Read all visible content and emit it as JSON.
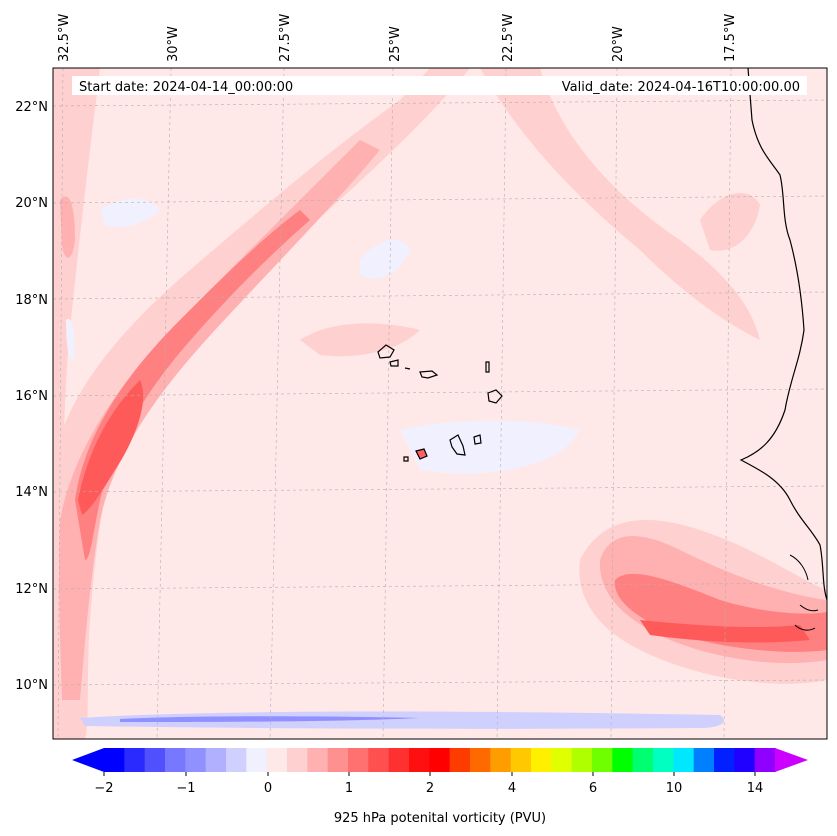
{
  "map": {
    "start_label": "Start date: 2024-04-14_00:00:00",
    "valid_label": "Valid_date: 2024-04-16T10:00:00.00",
    "lon_labels": [
      "32.5°W",
      "30°W",
      "27.5°W",
      "25°W",
      "22.5°W",
      "20°W",
      "17.5°W"
    ],
    "lat_labels": [
      "22°N",
      "20°N",
      "18°N",
      "16°N",
      "14°N",
      "12°N",
      "10°N"
    ],
    "background_color": "#ffe8e8"
  },
  "colorbar": {
    "label": "925 hPa potenital vorticity (PVU)",
    "tick_labels": [
      "−2",
      "−1",
      "0",
      "1",
      "2",
      "4",
      "6",
      "10",
      "14"
    ],
    "colors": [
      "#0000ff",
      "#2a2aff",
      "#5050ff",
      "#7878ff",
      "#9090ff",
      "#b0b0ff",
      "#d0d0ff",
      "#f0f0ff",
      "#ffe8e8",
      "#ffd0d0",
      "#ffb0b0",
      "#ff9090",
      "#ff7070",
      "#ff5050",
      "#ff3030",
      "#ff1010",
      "#ff0000",
      "#ff3c00",
      "#ff6a00",
      "#ff9c00",
      "#ffc800",
      "#fff000",
      "#e0ff00",
      "#b0ff00",
      "#70ff00",
      "#00ff00",
      "#00ff70",
      "#00ffc0",
      "#00e8ff",
      "#0080ff",
      "#0020ff",
      "#2000ff",
      "#9000ff"
    ],
    "extend_min_color": "#0000ff",
    "extend_max_color": "#cc00ff"
  }
}
